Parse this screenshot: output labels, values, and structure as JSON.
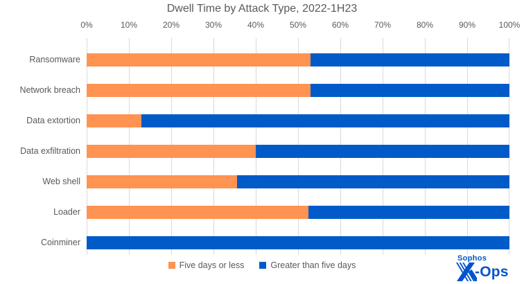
{
  "title": "Dwell Time by Attack Type, 2022-1H23",
  "chart_data": {
    "type": "bar",
    "orientation": "horizontal",
    "stacked": true,
    "title": "Dwell Time by Attack Type, 2022-1H23",
    "categories": [
      "Ransomware",
      "Network breach",
      "Data extortion",
      "Data exfiltration",
      "Web shell",
      "Loader",
      "Coinminer"
    ],
    "series": [
      {
        "name": "Five days or less",
        "color": "#FF9351",
        "values": [
          53,
          53,
          13,
          40,
          35.5,
          52.5,
          0
        ]
      },
      {
        "name": "Greater than five days",
        "color": "#005BC8",
        "values": [
          47,
          47,
          87,
          60,
          64.5,
          47.5,
          100
        ]
      }
    ],
    "x_axis": {
      "position": "top",
      "min": 0,
      "max": 100,
      "tick_step": 10,
      "tick_labels": [
        "0%",
        "10%",
        "20%",
        "30%",
        "40%",
        "50%",
        "60%",
        "70%",
        "80%",
        "90%",
        "100%"
      ]
    },
    "grid": "vertical",
    "legend_position": "bottom"
  },
  "legend": [
    {
      "label": "Five days or less",
      "color": "#FF9351"
    },
    {
      "label": "Greater than five days",
      "color": "#005BC8"
    }
  ],
  "logo": {
    "brand": "Sophos",
    "ops": "-Ops",
    "color": "#0055CB"
  },
  "colors": {
    "text": "#595959",
    "grid": "#D9D9D9",
    "background": "#FFFFFF",
    "orange": "#FF9351",
    "blue": "#005BC8"
  }
}
